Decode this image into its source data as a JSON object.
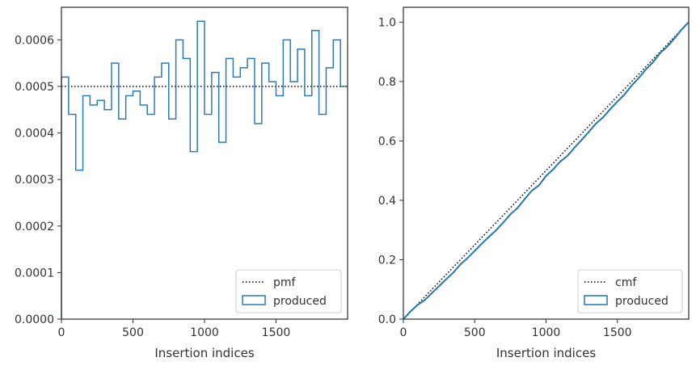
{
  "chart_data": [
    {
      "type": "histogram-step",
      "xlabel": "Insertion indices",
      "ylabel": "",
      "xlim": [
        0,
        2000
      ],
      "ylim": [
        0,
        0.00067
      ],
      "xticks": [
        "0",
        "500",
        "1000",
        "1500"
      ],
      "yticks": [
        "0.0000",
        "0.0001",
        "0.0002",
        "0.0003",
        "0.0004",
        "0.0005",
        "0.0006"
      ],
      "legend": {
        "position": "lower-right",
        "entries": [
          {
            "label": "pmf",
            "style": "dotted-line"
          },
          {
            "label": "produced",
            "style": "step-outline"
          }
        ]
      },
      "reference": {
        "name": "pmf",
        "value": 0.0005
      },
      "series": [
        {
          "name": "produced",
          "bin_width": 50,
          "values": [
            0.00052,
            0.00044,
            0.00032,
            0.00048,
            0.00046,
            0.00047,
            0.00045,
            0.00055,
            0.00043,
            0.00048,
            0.00049,
            0.00046,
            0.00044,
            0.00052,
            0.00055,
            0.00043,
            0.0006,
            0.00056,
            0.00036,
            0.00064,
            0.00044,
            0.00053,
            0.00038,
            0.00056,
            0.00052,
            0.00054,
            0.00056,
            0.00042,
            0.00055,
            0.00051,
            0.00048,
            0.0006,
            0.00051,
            0.00058,
            0.00048,
            0.00062,
            0.00044,
            0.00054,
            0.0006,
            0.0005
          ]
        }
      ],
      "colors": {
        "produced": "#2b7bb9",
        "pmf": "#000000"
      },
      "grid": false
    },
    {
      "type": "line",
      "xlabel": "Insertion indices",
      "ylabel": "",
      "xlim": [
        0,
        2000
      ],
      "ylim": [
        0,
        1.05
      ],
      "xticks": [
        "0",
        "500",
        "1000",
        "1500"
      ],
      "yticks": [
        "0.0",
        "0.2",
        "0.4",
        "0.6",
        "0.8",
        "1.0"
      ],
      "legend": {
        "position": "lower-right",
        "entries": [
          {
            "label": "cmf",
            "style": "dotted-line"
          },
          {
            "label": "produced",
            "style": "step-outline"
          }
        ]
      },
      "reference": {
        "name": "cmf",
        "from": [
          0,
          0
        ],
        "to": [
          2000,
          1.0
        ]
      },
      "series": [
        {
          "name": "produced",
          "description_source": "cumulative of left panel bins"
        }
      ],
      "colors": {
        "produced": "#1f77b4",
        "cmf": "#000000"
      },
      "grid": false
    }
  ]
}
